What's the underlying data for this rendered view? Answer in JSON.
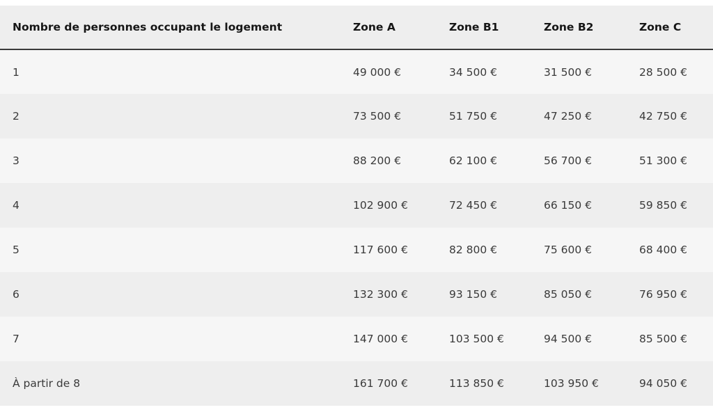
{
  "table": {
    "headers": [
      "Nombre de personnes occupant le logement",
      "Zone A",
      "Zone B1",
      "Zone B2",
      "Zone C"
    ],
    "rows": [
      [
        "1",
        "49 000 €",
        "34 500 €",
        "31 500 €",
        "28 500 €"
      ],
      [
        "2",
        "73 500 €",
        "51 750 €",
        "47 250 €",
        "42 750 €"
      ],
      [
        "3",
        "88 200 €",
        "62 100 €",
        "56 700 €",
        "51 300 €"
      ],
      [
        "4",
        "102 900 €",
        "72 450 €",
        "66 150 €",
        "59 850 €"
      ],
      [
        "5",
        "117 600 €",
        "82 800 €",
        "75 600 €",
        "68 400 €"
      ],
      [
        "6",
        "132 300 €",
        "93 150 €",
        "85 050 €",
        "76 950 €"
      ],
      [
        "7",
        "147 000 €",
        "103 500 €",
        "94 500 €",
        "85 500 €"
      ],
      [
        "À partir de 8",
        "161 700 €",
        "113 850 €",
        "103 950 €",
        "94 050 €"
      ]
    ]
  }
}
